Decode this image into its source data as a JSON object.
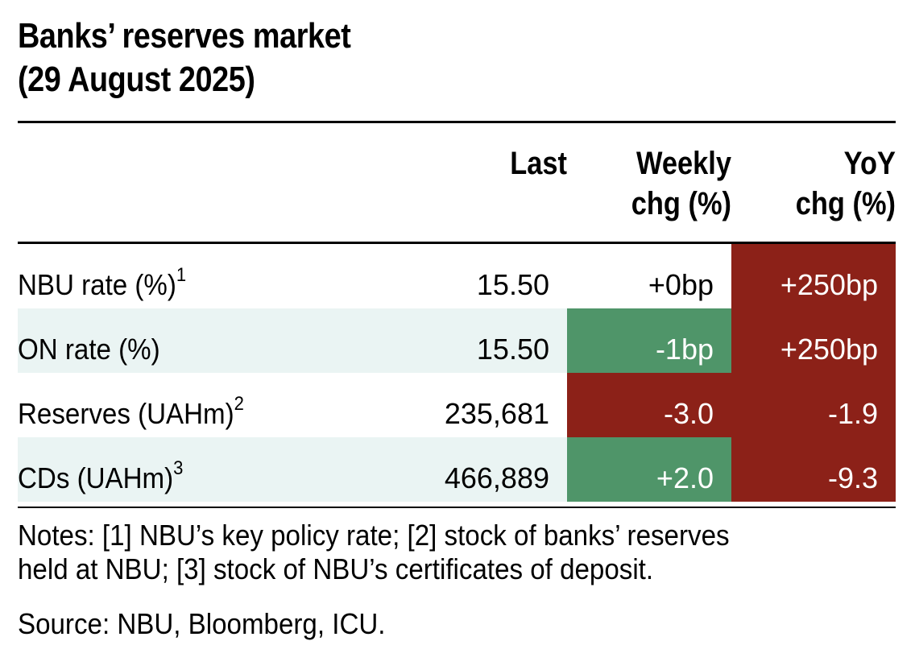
{
  "title": {
    "line1": "Banks’ reserves market",
    "line2": "(29 August 2025)"
  },
  "headers": {
    "last": "Last",
    "weekly_line1": "Weekly",
    "weekly_line2": "chg (%)",
    "yoy_line1": "YoY",
    "yoy_line2": "chg (%)"
  },
  "rows": [
    {
      "label": "NBU rate (%)",
      "note": "1",
      "last": "15.50",
      "weekly": "+0bp",
      "yoy": "+250bp"
    },
    {
      "label": "ON rate (%)",
      "note": "",
      "last": "15.50",
      "weekly": "-1bp",
      "yoy": "+250bp"
    },
    {
      "label": "Reserves (UAHm)",
      "note": "2",
      "last": "235,681",
      "weekly": "-3.0",
      "yoy": "-1.9"
    },
    {
      "label": "CDs (UAHm)",
      "note": "3",
      "last": "466,889",
      "weekly": "+2.0",
      "yoy": "-9.3"
    }
  ],
  "notes": {
    "line1": "Notes: [1] NBU’s key policy rate; [2] stock of banks’ reserves",
    "line2": "held at NBU; [3] stock of NBU’s certificates of deposit."
  },
  "source": "Source: NBU, Bloomberg, ICU.",
  "colors": {
    "positive": "#4f9569",
    "negative": "#8c2118",
    "shaded_row": "#eaf4f3"
  }
}
